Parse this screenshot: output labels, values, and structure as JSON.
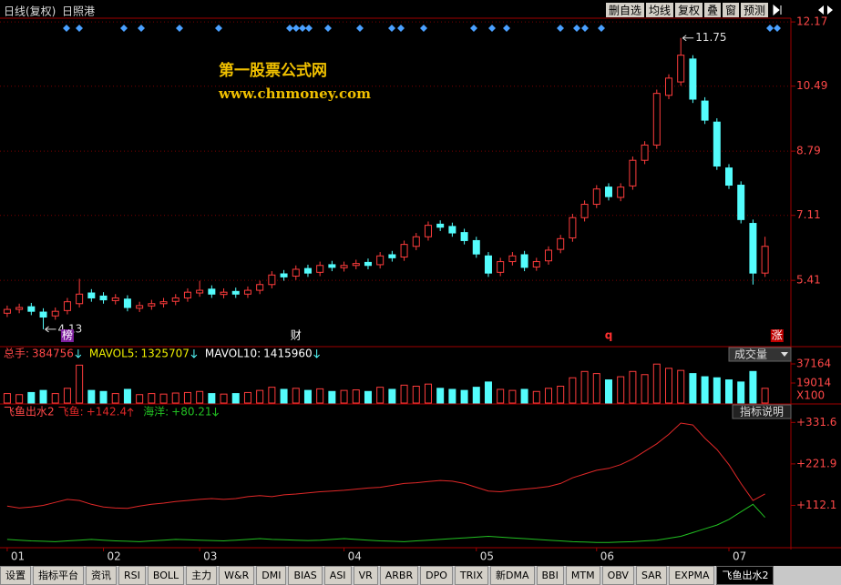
{
  "toolbar": {
    "title": "日线(复权)",
    "stock": "日照港",
    "buttons": [
      "删自选",
      "均线",
      "复权",
      "叠",
      "窗",
      "预测"
    ]
  },
  "watermark": [
    "第一股票公式网",
    "www.chnmoney.com"
  ],
  "chart_data": [
    {
      "type": "candlestick",
      "x": [
        0,
        1,
        2,
        3,
        4,
        5,
        6,
        7,
        8,
        9,
        10,
        11,
        12,
        13,
        14,
        15,
        16,
        17,
        18,
        19,
        20,
        21,
        22,
        23,
        24,
        25,
        26,
        27,
        28,
        29,
        30,
        31,
        32,
        33,
        34,
        35,
        36,
        37,
        38,
        39,
        40,
        41,
        42,
        43,
        44,
        45,
        46,
        47,
        48,
        49,
        50,
        51,
        52,
        53,
        54,
        55,
        56,
        57,
        58,
        59,
        60,
        61,
        62,
        63
      ],
      "open": [
        4.55,
        4.65,
        4.72,
        4.58,
        4.48,
        4.62,
        4.8,
        5.08,
        5.0,
        4.88,
        4.92,
        4.68,
        4.74,
        4.8,
        4.86,
        4.95,
        5.08,
        5.18,
        5.04,
        5.12,
        5.05,
        5.15,
        5.3,
        5.58,
        5.52,
        5.72,
        5.62,
        5.82,
        5.74,
        5.8,
        5.88,
        5.82,
        6.08,
        6.02,
        6.3,
        6.55,
        6.88,
        6.82,
        6.66,
        6.45,
        6.05,
        5.62,
        5.9,
        6.08,
        5.76,
        5.92,
        6.22,
        6.52,
        7.05,
        7.4,
        7.85,
        7.58,
        7.88,
        8.55,
        8.95,
        10.25,
        10.6,
        11.2,
        10.1,
        9.55,
        8.35,
        7.9,
        6.9,
        5.6
      ],
      "high": [
        4.75,
        4.8,
        4.82,
        4.68,
        4.7,
        4.95,
        5.45,
        5.18,
        5.1,
        5.05,
        5.02,
        4.85,
        4.9,
        4.95,
        5.05,
        5.2,
        5.4,
        5.28,
        5.2,
        5.22,
        5.25,
        5.4,
        5.65,
        5.68,
        5.8,
        5.82,
        5.9,
        5.92,
        5.9,
        5.95,
        5.98,
        6.15,
        6.18,
        6.45,
        6.65,
        6.95,
        6.98,
        6.92,
        6.76,
        6.55,
        6.15,
        6.0,
        6.15,
        6.18,
        6.0,
        6.3,
        6.6,
        7.15,
        7.5,
        7.9,
        7.95,
        7.95,
        8.65,
        9.05,
        10.4,
        10.8,
        11.75,
        11.3,
        10.2,
        9.65,
        8.45,
        8.0,
        7.0,
        6.55
      ],
      "low": [
        4.45,
        4.55,
        4.5,
        4.13,
        4.38,
        4.52,
        4.7,
        4.85,
        4.8,
        4.78,
        4.6,
        4.58,
        4.64,
        4.7,
        4.76,
        4.85,
        4.98,
        4.95,
        4.94,
        4.95,
        4.95,
        5.05,
        5.2,
        5.4,
        5.42,
        5.5,
        5.52,
        5.65,
        5.64,
        5.7,
        5.7,
        5.72,
        5.9,
        5.92,
        6.2,
        6.45,
        6.7,
        6.55,
        6.35,
        6.0,
        5.5,
        5.52,
        5.8,
        5.65,
        5.66,
        5.82,
        6.12,
        6.42,
        6.95,
        7.3,
        7.5,
        7.48,
        7.78,
        8.45,
        8.85,
        10.15,
        10.5,
        10.05,
        9.5,
        8.3,
        7.8,
        6.9,
        5.3,
        5.5
      ],
      "close": [
        4.65,
        4.7,
        4.6,
        4.45,
        4.6,
        4.85,
        5.05,
        4.95,
        4.9,
        4.95,
        4.7,
        4.75,
        4.8,
        4.85,
        4.95,
        5.1,
        5.15,
        5.05,
        5.1,
        5.05,
        5.15,
        5.3,
        5.55,
        5.5,
        5.7,
        5.6,
        5.8,
        5.75,
        5.8,
        5.85,
        5.8,
        6.05,
        6.0,
        6.35,
        6.55,
        6.85,
        6.8,
        6.65,
        6.45,
        6.1,
        5.6,
        5.9,
        6.05,
        5.75,
        5.9,
        6.2,
        6.5,
        7.05,
        7.4,
        7.8,
        7.6,
        7.85,
        8.55,
        8.95,
        10.3,
        10.7,
        11.3,
        10.15,
        9.6,
        8.4,
        7.9,
        7.0,
        5.6,
        6.3
      ],
      "up_color": "#ff3c3c",
      "down_color": "#54fcfc",
      "xlim": [
        -0.6,
        65.15
      ],
      "ylim": [
        3.7,
        12.22
      ],
      "yticks": [
        5.41,
        7.11,
        8.79,
        10.49,
        12.17
      ],
      "grid": true,
      "annotations": [
        {
          "x": 56,
          "y": 11.75
        },
        {
          "x": 3,
          "y": 4.13
        }
      ],
      "event_markers": [
        {
          "x": 5,
          "label": "榜"
        },
        {
          "x": 24,
          "label": "财"
        },
        {
          "x": 50,
          "label": "q"
        },
        {
          "x": 64,
          "label": "涨"
        }
      ]
    },
    {
      "type": "bar",
      "x": [
        0,
        1,
        2,
        3,
        4,
        5,
        6,
        7,
        8,
        9,
        10,
        11,
        12,
        13,
        14,
        15,
        16,
        17,
        18,
        19,
        20,
        21,
        22,
        23,
        24,
        25,
        26,
        27,
        28,
        29,
        30,
        31,
        32,
        33,
        34,
        35,
        36,
        37,
        38,
        39,
        40,
        41,
        42,
        43,
        44,
        45,
        46,
        47,
        48,
        49,
        50,
        51,
        52,
        53,
        54,
        55,
        56,
        57,
        58,
        59,
        60,
        61,
        62,
        63
      ],
      "values": [
        9000,
        8000,
        10000,
        12000,
        9000,
        14000,
        36000,
        12000,
        11000,
        9000,
        13000,
        8000,
        9000,
        8500,
        9500,
        10000,
        11000,
        9000,
        8500,
        9000,
        10000,
        12000,
        15000,
        13000,
        14000,
        12000,
        13500,
        11000,
        12000,
        12500,
        11000,
        15000,
        13000,
        17000,
        16000,
        18000,
        14000,
        13000,
        12000,
        15000,
        20000,
        13000,
        12000,
        13000,
        11000,
        14000,
        16000,
        24000,
        30000,
        28000,
        22000,
        25000,
        30000,
        27000,
        37000,
        33000,
        31000,
        28000,
        25000,
        24000,
        22000,
        20000,
        30000,
        14000
      ],
      "xlim": [
        -0.6,
        65.15
      ],
      "ylim": [
        0,
        39760
      ],
      "yticks": [
        19014,
        37164
      ],
      "y_unit": "X100",
      "selector": "成交量",
      "legend_items": [
        {
          "name": "总手:",
          "value": "384756"
        },
        {
          "name": "MAVOL5:",
          "value": "1325707"
        },
        {
          "name": "MAVOL10:",
          "value": "1415960"
        }
      ]
    },
    {
      "type": "line",
      "title": "飞鱼出水2",
      "x": [
        0,
        1,
        2,
        3,
        4,
        5,
        6,
        7,
        8,
        9,
        10,
        11,
        12,
        13,
        14,
        15,
        16,
        17,
        18,
        19,
        20,
        21,
        22,
        23,
        24,
        25,
        26,
        27,
        28,
        29,
        30,
        31,
        32,
        33,
        34,
        35,
        36,
        37,
        38,
        39,
        40,
        41,
        42,
        43,
        44,
        45,
        46,
        47,
        48,
        49,
        50,
        51,
        52,
        53,
        54,
        55,
        56,
        57,
        58,
        59,
        60,
        61,
        62,
        63
      ],
      "series": [
        {
          "name": "飞鱼:",
          "header_value": "+142.4",
          "color": "#e02828",
          "values": [
            110,
            105,
            108,
            112,
            120,
            128,
            125,
            115,
            108,
            105,
            104,
            110,
            115,
            118,
            122,
            125,
            128,
            130,
            128,
            130,
            135,
            138,
            135,
            140,
            142,
            145,
            148,
            150,
            152,
            155,
            158,
            160,
            165,
            170,
            172,
            175,
            178,
            176,
            170,
            160,
            150,
            148,
            152,
            155,
            158,
            162,
            170,
            185,
            195,
            205,
            210,
            220,
            235,
            255,
            275,
            300,
            330,
            325,
            290,
            260,
            220,
            170,
            125,
            142.4
          ]
        },
        {
          "name": "海洋:",
          "header_value": "+80.21",
          "color": "#22c022",
          "values": [
            22,
            20,
            18,
            17,
            16,
            18,
            20,
            22,
            20,
            18,
            17,
            16,
            18,
            20,
            22,
            21,
            20,
            19,
            18,
            20,
            22,
            24,
            22,
            21,
            20,
            19,
            20,
            22,
            24,
            22,
            20,
            18,
            17,
            16,
            18,
            20,
            22,
            24,
            26,
            28,
            30,
            28,
            26,
            24,
            22,
            20,
            18,
            16,
            15,
            14,
            14,
            15,
            16,
            18,
            20,
            25,
            30,
            40,
            50,
            60,
            75,
            95,
            115,
            80.21
          ]
        }
      ],
      "xlim": [
        -0.6,
        65.15
      ],
      "ylim": [
        0,
        342
      ],
      "yticks": [
        {
          "value": 112.1,
          "label": "+112.1"
        },
        {
          "value": 221.9,
          "label": "+221.9"
        },
        {
          "value": 331.6,
          "label": "+331.6"
        }
      ],
      "xticks": [
        {
          "value": 0,
          "label": "01"
        },
        {
          "value": 8,
          "label": "02"
        },
        {
          "value": 16,
          "label": "03"
        },
        {
          "value": 28,
          "label": "04"
        },
        {
          "value": 39,
          "label": "05"
        },
        {
          "value": 49,
          "label": "06"
        },
        {
          "value": 60,
          "label": "07"
        }
      ],
      "help_button": "指标说明"
    }
  ],
  "tabs": [
    "设置",
    "指标平台",
    "资讯",
    "RSI",
    "BOLL",
    "主力",
    "W&R",
    "DMI",
    "BIAS",
    "ASI",
    "VR",
    "ARBR",
    "DPO",
    "TRIX",
    "新DMA",
    "BBI",
    "MTM",
    "OBV",
    "SAR",
    "EXPMA",
    "飞鱼出水2"
  ]
}
